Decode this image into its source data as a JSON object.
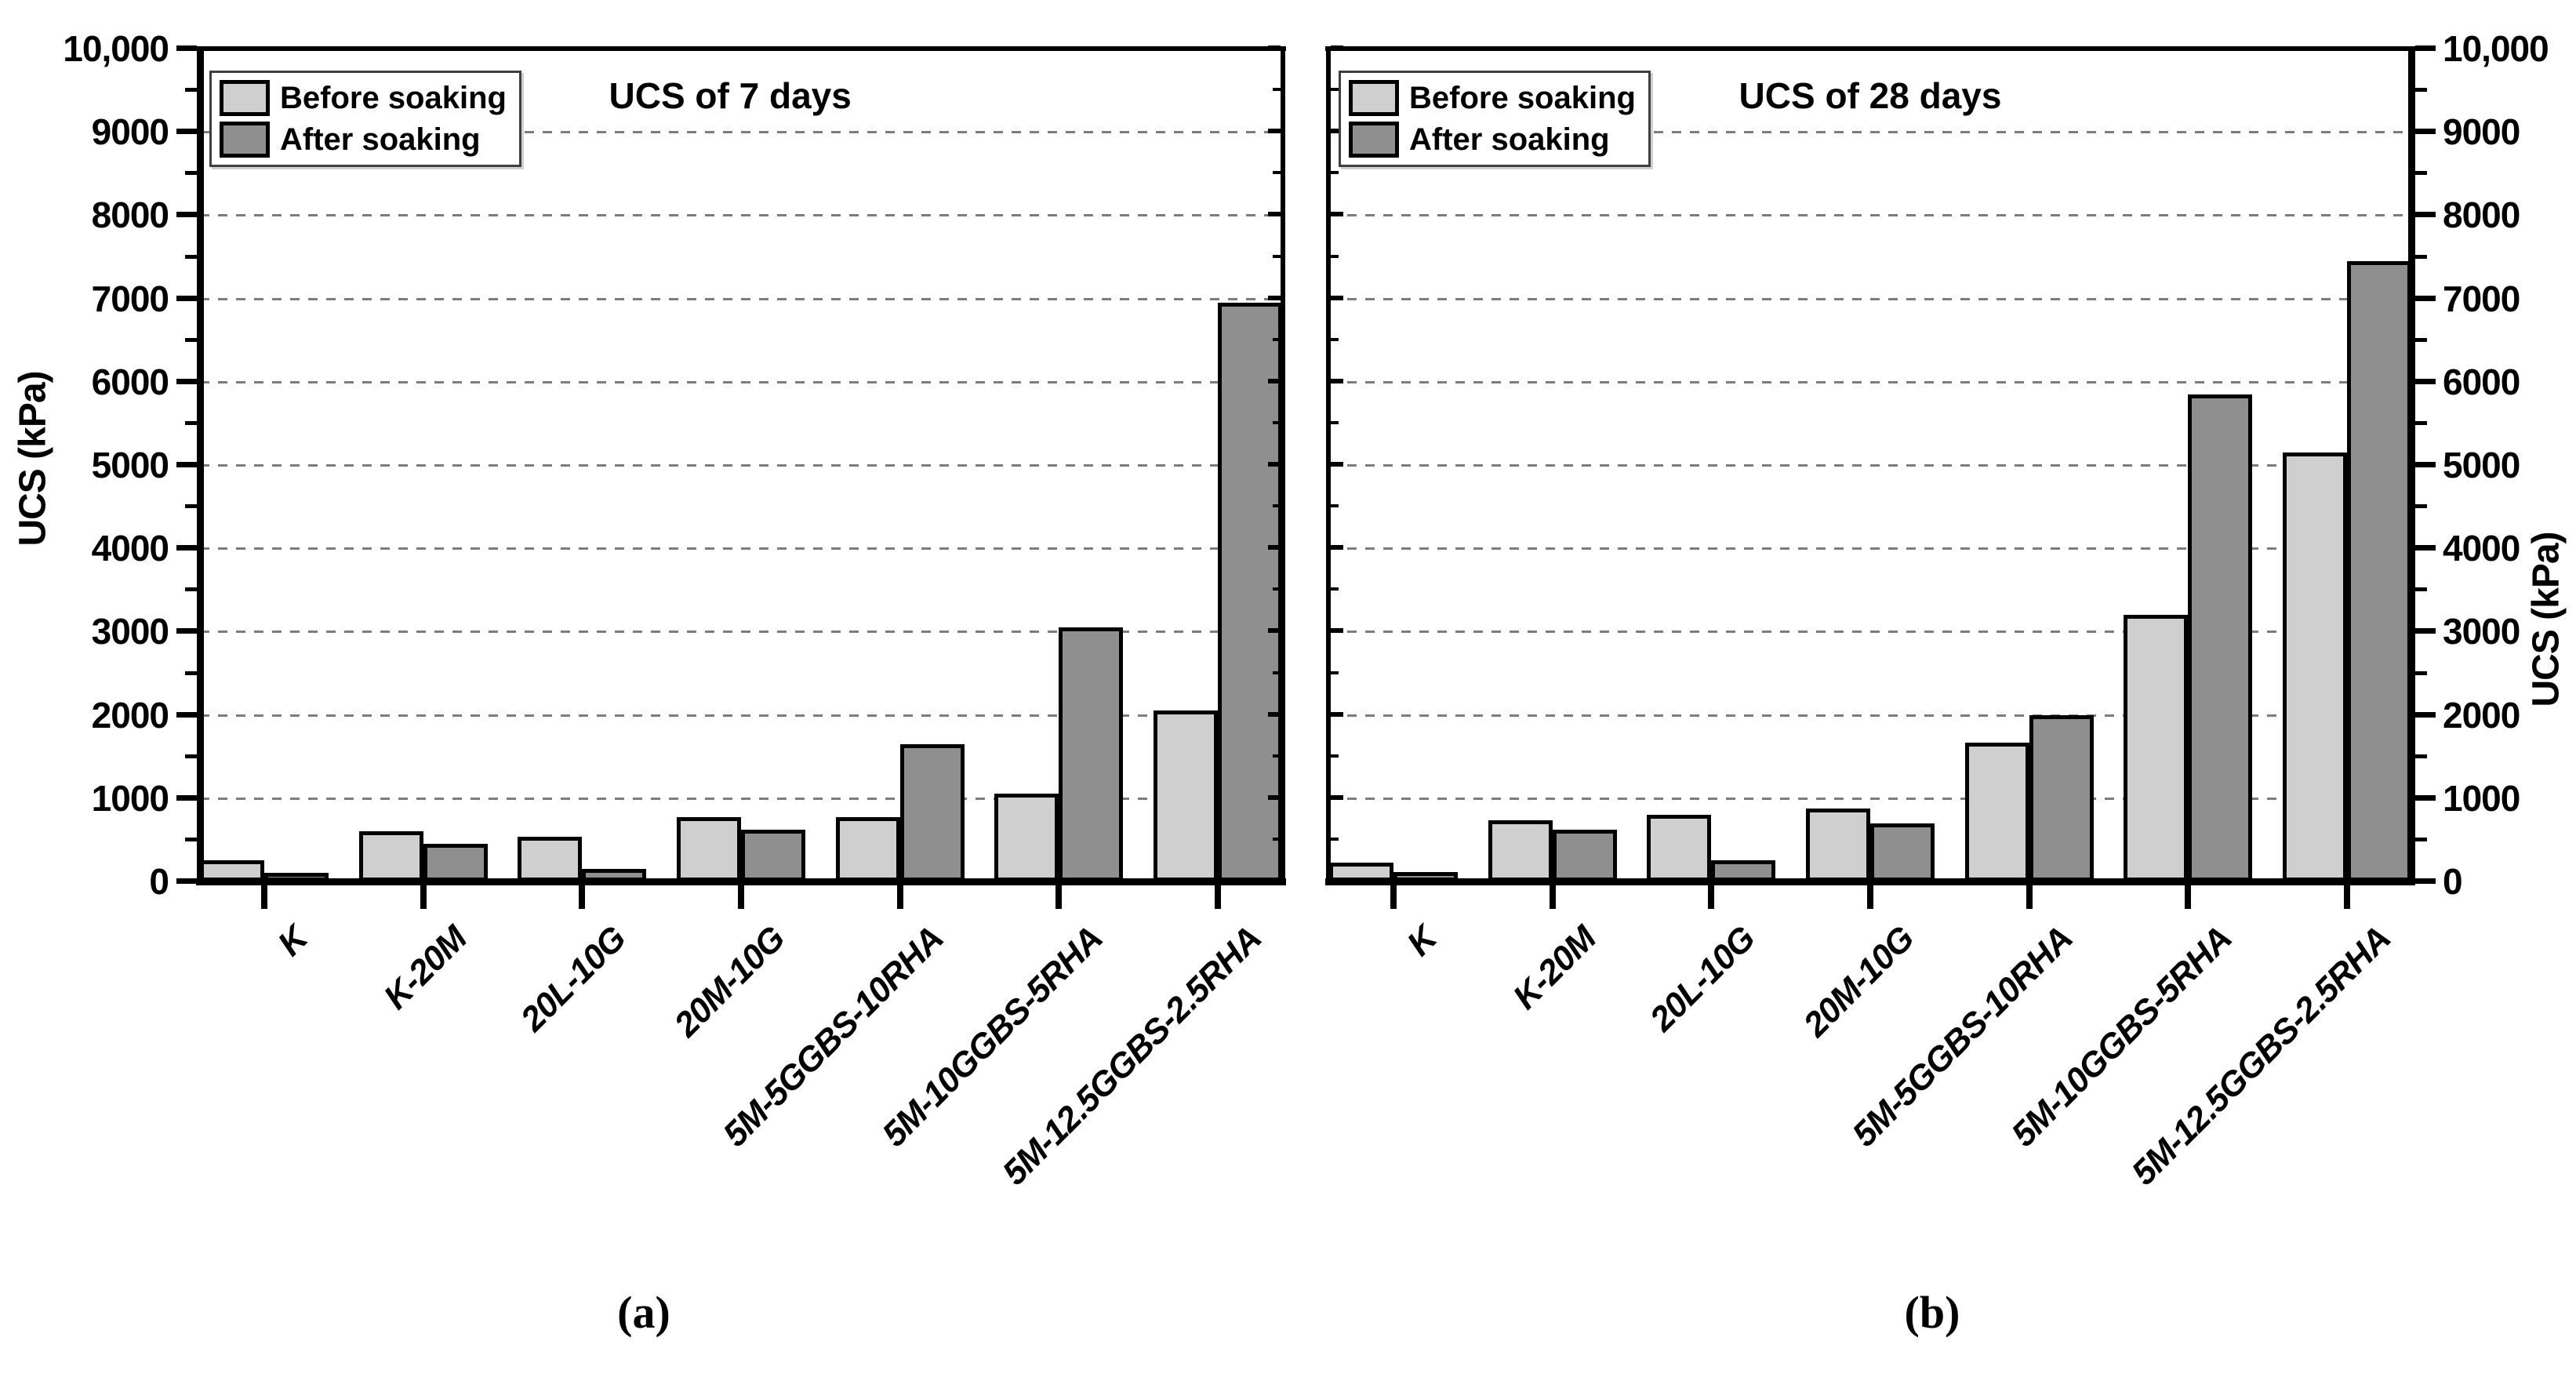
{
  "figure": {
    "caption_a": "(a)",
    "caption_b": "(b)"
  },
  "legend": {
    "before_label": "Before soaking",
    "after_label": "After soaking"
  },
  "colors": {
    "before_fill": "#cfcfcf",
    "after_fill": "#8f8f8f",
    "grid_line": "#7c7c7c",
    "axis": "#000000",
    "background": "#ffffff"
  },
  "y_axis": {
    "label": "UCS (kPa)",
    "tick_labels": [
      "0",
      "1000",
      "2000",
      "3000",
      "4000",
      "5000",
      "6000",
      "7000",
      "8000",
      "9000",
      "10,000"
    ],
    "major_step": 1000,
    "minor_step": 500
  },
  "chart_data": [
    {
      "type": "bar",
      "title": "UCS of 7 days",
      "ylabel": "UCS (kPa)",
      "ylim": [
        0,
        10000
      ],
      "ytick_step": 1000,
      "grid": "horizontal-dashed",
      "legend_position": "top-left",
      "y_axis_side": "left",
      "categories": [
        "K",
        "K-20M",
        "20L-10G",
        "20M-10G",
        "5M-5GGBS-10RHA",
        "5M-10GGBS-5RHA",
        "5M-12.5GGBS-2.5RHA"
      ],
      "series": [
        {
          "name": "Before soaking",
          "values": [
            250,
            600,
            540,
            770,
            770,
            1050,
            2050
          ]
        },
        {
          "name": "After soaking",
          "values": [
            100,
            450,
            150,
            620,
            1650,
            3050,
            6950
          ]
        }
      ]
    },
    {
      "type": "bar",
      "title": "UCS of 28 days",
      "ylabel": "UCS (kPa)",
      "ylim": [
        0,
        10000
      ],
      "ytick_step": 1000,
      "grid": "horizontal-dashed",
      "legend_position": "top-left",
      "y_axis_side": "right",
      "categories": [
        "K",
        "K-20M",
        "20L-10G",
        "20M-10G",
        "5M-5GGBS-10RHA",
        "5M-10GGBS-5RHA",
        "5M-12.5GGBS-2.5RHA"
      ],
      "series": [
        {
          "name": "Before soaking",
          "values": [
            230,
            730,
            800,
            880,
            1670,
            3200,
            5150
          ]
        },
        {
          "name": "After soaking",
          "values": [
            110,
            620,
            250,
            700,
            2000,
            5850,
            7450
          ]
        }
      ]
    }
  ]
}
